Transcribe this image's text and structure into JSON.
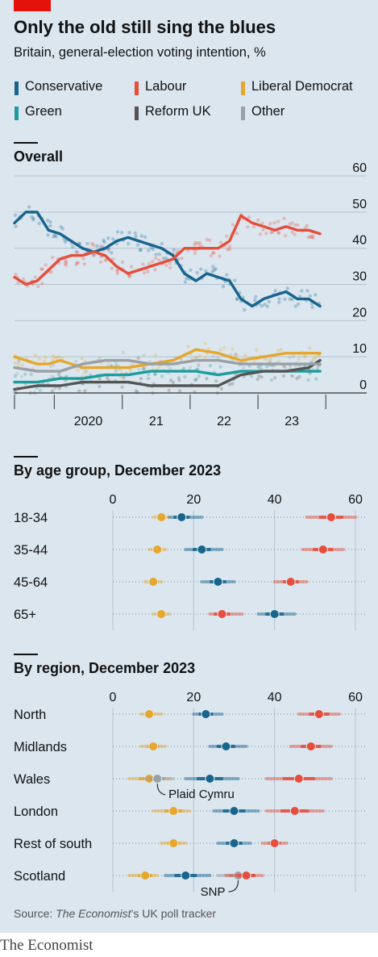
{
  "title": "Only the old still sing the blues",
  "subtitle": "Britain, general-election voting intention, %",
  "colors": {
    "Conservative": "#17648d",
    "Labour": "#e64e3c",
    "Liberal Democrat": "#e6a72b",
    "Green": "#1c9c9c",
    "Reform UK": "#555555",
    "Other": "#9aa0a6"
  },
  "legend": [
    "Conservative",
    "Labour",
    "Liberal Democrat",
    "Green",
    "Reform UK",
    "Other"
  ],
  "source": {
    "prefix": "Source: ",
    "italic": "The Economist",
    "suffix": "’s UK poll tracker"
  },
  "brand": "The Economist",
  "chart_data": [
    {
      "type": "line",
      "title": "Overall",
      "ylim": [
        0,
        60
      ],
      "y_ticks": [
        "60",
        "50",
        "40",
        "30",
        "20",
        "10",
        "0"
      ],
      "x_tick_labels": [
        "2020",
        "21",
        "22",
        "23"
      ],
      "x_range": [
        "2019-06-01",
        "2023-12-31"
      ],
      "grid": true,
      "series": [
        {
          "name": "Conservative",
          "points": [
            [
              "2019-06-01",
              47
            ],
            [
              "2019-08-01",
              50
            ],
            [
              "2019-10-01",
              50
            ],
            [
              "2019-12-01",
              45
            ],
            [
              "2020-02-01",
              44
            ],
            [
              "2020-04-01",
              42
            ],
            [
              "2020-06-01",
              40
            ],
            [
              "2020-08-01",
              39
            ],
            [
              "2020-10-01",
              40
            ],
            [
              "2020-12-01",
              42
            ],
            [
              "2021-02-01",
              43
            ],
            [
              "2021-04-01",
              42
            ],
            [
              "2021-06-01",
              41
            ],
            [
              "2021-08-01",
              40
            ],
            [
              "2021-10-01",
              38
            ],
            [
              "2021-12-01",
              33
            ],
            [
              "2022-02-01",
              31
            ],
            [
              "2022-04-01",
              33
            ],
            [
              "2022-06-01",
              32
            ],
            [
              "2022-08-01",
              31
            ],
            [
              "2022-10-01",
              26
            ],
            [
              "2022-12-01",
              24
            ],
            [
              "2023-02-01",
              26
            ],
            [
              "2023-04-01",
              27
            ],
            [
              "2023-06-01",
              28
            ],
            [
              "2023-08-01",
              26
            ],
            [
              "2023-10-01",
              26
            ],
            [
              "2023-12-01",
              24
            ]
          ]
        },
        {
          "name": "Labour",
          "points": [
            [
              "2019-06-01",
              32
            ],
            [
              "2019-08-01",
              30
            ],
            [
              "2019-10-01",
              31
            ],
            [
              "2019-12-01",
              34
            ],
            [
              "2020-02-01",
              37
            ],
            [
              "2020-04-01",
              38
            ],
            [
              "2020-06-01",
              38
            ],
            [
              "2020-08-01",
              39
            ],
            [
              "2020-10-01",
              38
            ],
            [
              "2020-12-01",
              35
            ],
            [
              "2021-02-01",
              33
            ],
            [
              "2021-04-01",
              34
            ],
            [
              "2021-06-01",
              35
            ],
            [
              "2021-08-01",
              36
            ],
            [
              "2021-10-01",
              37
            ],
            [
              "2021-12-01",
              40
            ],
            [
              "2022-02-01",
              40
            ],
            [
              "2022-04-01",
              40
            ],
            [
              "2022-06-01",
              40
            ],
            [
              "2022-08-01",
              42
            ],
            [
              "2022-10-01",
              49
            ],
            [
              "2022-12-01",
              47
            ],
            [
              "2023-02-01",
              46
            ],
            [
              "2023-04-01",
              45
            ],
            [
              "2023-06-01",
              46
            ],
            [
              "2023-08-01",
              45
            ],
            [
              "2023-10-01",
              45
            ],
            [
              "2023-12-01",
              44
            ]
          ]
        },
        {
          "name": "Liberal Democrat",
          "points": [
            [
              "2019-06-01",
              10
            ],
            [
              "2019-08-01",
              9
            ],
            [
              "2019-10-01",
              8
            ],
            [
              "2019-12-01",
              8
            ],
            [
              "2020-02-01",
              9
            ],
            [
              "2020-06-01",
              7
            ],
            [
              "2020-10-01",
              7
            ],
            [
              "2021-02-01",
              7
            ],
            [
              "2021-06-01",
              8
            ],
            [
              "2021-10-01",
              9
            ],
            [
              "2022-02-01",
              12
            ],
            [
              "2022-06-01",
              11
            ],
            [
              "2022-10-01",
              9
            ],
            [
              "2023-02-01",
              10
            ],
            [
              "2023-06-01",
              11
            ],
            [
              "2023-10-01",
              11
            ],
            [
              "2023-12-01",
              11
            ]
          ]
        },
        {
          "name": "Green",
          "points": [
            [
              "2019-06-01",
              3
            ],
            [
              "2019-10-01",
              3
            ],
            [
              "2020-02-01",
              4
            ],
            [
              "2020-06-01",
              4
            ],
            [
              "2020-10-01",
              5
            ],
            [
              "2021-02-01",
              5
            ],
            [
              "2021-06-01",
              6
            ],
            [
              "2021-10-01",
              6
            ],
            [
              "2022-02-01",
              6
            ],
            [
              "2022-06-01",
              5
            ],
            [
              "2022-10-01",
              6
            ],
            [
              "2023-02-01",
              6
            ],
            [
              "2023-06-01",
              6
            ],
            [
              "2023-10-01",
              6
            ],
            [
              "2023-12-01",
              6
            ]
          ]
        },
        {
          "name": "Reform UK",
          "points": [
            [
              "2019-06-01",
              1
            ],
            [
              "2019-10-01",
              2
            ],
            [
              "2020-02-01",
              2
            ],
            [
              "2020-06-01",
              3
            ],
            [
              "2020-10-01",
              3
            ],
            [
              "2021-02-01",
              3
            ],
            [
              "2021-06-01",
              2
            ],
            [
              "2021-10-01",
              2
            ],
            [
              "2022-02-01",
              2
            ],
            [
              "2022-06-01",
              2
            ],
            [
              "2022-10-01",
              5
            ],
            [
              "2023-02-01",
              6
            ],
            [
              "2023-06-01",
              6
            ],
            [
              "2023-10-01",
              7
            ],
            [
              "2023-12-01",
              9
            ]
          ]
        },
        {
          "name": "Other",
          "points": [
            [
              "2019-06-01",
              7
            ],
            [
              "2019-10-01",
              6
            ],
            [
              "2020-02-01",
              6
            ],
            [
              "2020-06-01",
              8
            ],
            [
              "2020-10-01",
              9
            ],
            [
              "2021-02-01",
              9
            ],
            [
              "2021-06-01",
              8
            ],
            [
              "2021-10-01",
              8
            ],
            [
              "2022-02-01",
              9
            ],
            [
              "2022-06-01",
              9
            ],
            [
              "2022-10-01",
              8
            ],
            [
              "2023-02-01",
              8
            ],
            [
              "2023-06-01",
              8
            ],
            [
              "2023-10-01",
              8
            ],
            [
              "2023-12-01",
              8
            ]
          ]
        }
      ]
    },
    {
      "type": "scatter",
      "title": "By age group, December 2023",
      "xlim": [
        0,
        60
      ],
      "x_ticks": [
        "0",
        "20",
        "40",
        "60"
      ],
      "categories": [
        "18-34",
        "35-44",
        "45-64",
        "65+"
      ],
      "series": [
        {
          "name": "Liberal Democrat",
          "values": [
            12,
            11,
            10,
            12
          ],
          "ranges": [
            [
              10,
              14
            ],
            [
              9,
              13
            ],
            [
              8,
              12
            ],
            [
              10,
              14
            ]
          ]
        },
        {
          "name": "Conservative",
          "values": [
            17,
            22,
            26,
            40
          ],
          "ranges": [
            [
              14,
              22
            ],
            [
              18,
              27
            ],
            [
              22,
              30
            ],
            [
              36,
              45
            ]
          ]
        },
        {
          "name": "Labour",
          "values": [
            54,
            52,
            44,
            27
          ],
          "ranges": [
            [
              48,
              60
            ],
            [
              47,
              57
            ],
            [
              40,
              48
            ],
            [
              24,
              32
            ]
          ]
        }
      ]
    },
    {
      "type": "scatter",
      "title": "By region, December 2023",
      "xlim": [
        0,
        60
      ],
      "x_ticks": [
        "0",
        "20",
        "40",
        "60"
      ],
      "categories": [
        "North",
        "Midlands",
        "Wales",
        "London",
        "Rest of south",
        "Scotland"
      ],
      "series": [
        {
          "name": "Liberal Democrat",
          "values": [
            9,
            10,
            9,
            15,
            15,
            8
          ],
          "ranges": [
            [
              7,
              12
            ],
            [
              7,
              13
            ],
            [
              4,
              14
            ],
            [
              10,
              19
            ],
            [
              12,
              18
            ],
            [
              4,
              11
            ]
          ]
        },
        {
          "name": "Other",
          "label_on": [
            2,
            5
          ],
          "labels": [
            "Plaid Cymru",
            "SNP"
          ],
          "values": [
            null,
            null,
            11,
            null,
            null,
            31
          ],
          "ranges": [
            null,
            null,
            [
              8,
              15
            ],
            null,
            null,
            [
              26,
              35
            ]
          ]
        },
        {
          "name": "Conservative",
          "values": [
            23,
            28,
            24,
            30,
            30,
            18
          ],
          "ranges": [
            [
              20,
              27
            ],
            [
              24,
              33
            ],
            [
              18,
              31
            ],
            [
              25,
              36
            ],
            [
              26,
              34
            ],
            [
              13,
              24
            ]
          ]
        },
        {
          "name": "Labour",
          "values": [
            51,
            49,
            46,
            45,
            40,
            33
          ],
          "ranges": [
            [
              46,
              56
            ],
            [
              44,
              54
            ],
            [
              38,
              54
            ],
            [
              38,
              52
            ],
            [
              37,
              43
            ],
            [
              28,
              37
            ]
          ]
        }
      ]
    }
  ]
}
